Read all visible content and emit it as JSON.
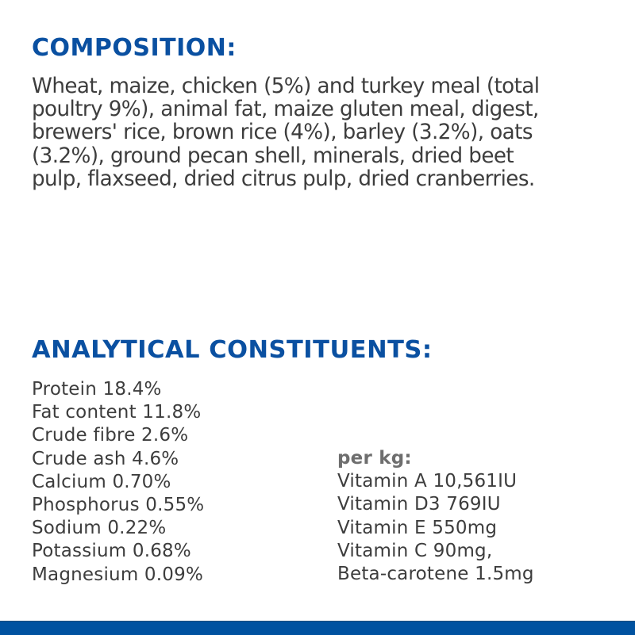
{
  "composition": {
    "title": "COMPOSITION:",
    "lines": [
      "Wheat, maize, chicken (5%) and turkey meal (total",
      "poultry 9%), animal fat, maize gluten meal, digest,",
      "brewers' rice, brown rice (4%), barley (3.2%), oats",
      "(3.2%), ground pecan shell, minerals, dried beet",
      "pulp, flaxseed, dried citrus pulp, dried cranberries."
    ]
  },
  "analytical": {
    "title": "ANALYTICAL CONSTITUENTS:",
    "constituents": [
      "Protein 18.4%",
      "Fat content 11.8%",
      "Crude fibre 2.6%",
      "Crude ash 4.6%",
      "Calcium 0.70%",
      "Phosphorus 0.55%",
      "Sodium 0.22%",
      "Potassium 0.68%",
      "Magnesium 0.09%"
    ],
    "per_kg": {
      "label": "per kg:",
      "items": [
        "Vitamin A 10,561IU",
        "Vitamin D3 769IU",
        "Vitamin E 550mg",
        "Vitamin C 90mg,",
        "Beta-carotene 1.5mg"
      ]
    }
  },
  "colors": {
    "heading": "#0a50a1",
    "body_text": "#3d3d3d",
    "per_kg_label": "#6e6e6e",
    "footer_band": "#0052a0"
  }
}
